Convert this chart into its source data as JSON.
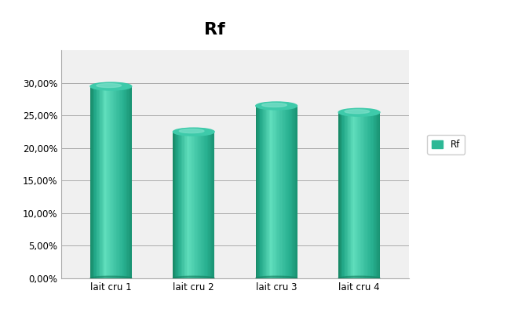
{
  "categories": [
    "lait cru 1",
    "lait cru 2",
    "lait cru 3",
    "lait cru 4"
  ],
  "values": [
    0.295,
    0.225,
    0.265,
    0.255
  ],
  "bar_color_main": "#2DB896",
  "bar_color_light": "#5DD8B8",
  "bar_color_dark": "#1A9070",
  "bar_color_top": "#4ECBA8",
  "title": "Rf",
  "legend_label": "Rf",
  "legend_color": "#2DB896",
  "ylim": [
    0,
    0.35
  ],
  "yticks": [
    0.0,
    0.05,
    0.1,
    0.15,
    0.2,
    0.25,
    0.3
  ],
  "ytick_labels": [
    "0,00%",
    "5,00%",
    "10,00%",
    "15,00%",
    "20,00%",
    "25,00%",
    "30,00%"
  ],
  "background_color": "#ffffff",
  "plot_bg_color": "#f0f0f0",
  "grid_color": "#aaaaaa",
  "title_fontsize": 16,
  "tick_fontsize": 8.5,
  "bar_width": 0.5,
  "n_grad": 40
}
